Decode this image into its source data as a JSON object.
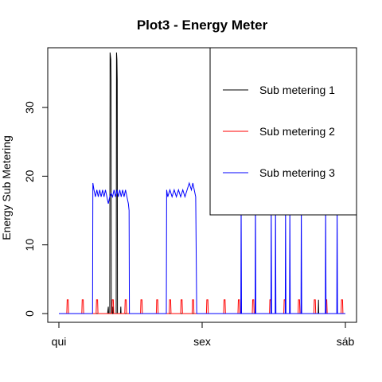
{
  "chart_data": {
    "type": "line",
    "title": "Plot3 - Energy Meter",
    "xlabel": "",
    "ylabel": "Energy Sub Metering",
    "x_ticks": [
      "qui",
      "sex",
      "sáb"
    ],
    "xlim": [
      0,
      2
    ],
    "ylim": [
      0,
      38
    ],
    "y_ticks": [
      0,
      10,
      20,
      30
    ],
    "grid": false,
    "legend": {
      "position": "top-right"
    },
    "series": [
      {
        "name": "Sub metering 1",
        "color": "#000000",
        "points": [
          [
            0.0,
            0
          ],
          [
            0.34,
            0
          ],
          [
            0.345,
            1
          ],
          [
            0.347,
            0
          ],
          [
            0.355,
            0
          ],
          [
            0.357,
            38
          ],
          [
            0.362,
            37
          ],
          [
            0.364,
            34
          ],
          [
            0.366,
            0
          ],
          [
            0.375,
            0
          ],
          [
            0.377,
            1
          ],
          [
            0.379,
            0
          ],
          [
            0.4,
            0
          ],
          [
            0.402,
            38
          ],
          [
            0.405,
            37
          ],
          [
            0.407,
            34
          ],
          [
            0.409,
            0
          ],
          [
            0.43,
            0
          ],
          [
            0.432,
            1
          ],
          [
            0.434,
            0
          ],
          [
            1.81,
            0
          ],
          [
            1.812,
            2
          ],
          [
            1.814,
            0
          ],
          [
            2.0,
            0
          ]
        ]
      },
      {
        "name": "Sub metering 2",
        "color": "#ff0000",
        "points": [
          [
            0.0,
            0
          ],
          [
            0.055,
            0
          ],
          [
            0.058,
            2
          ],
          [
            0.065,
            2
          ],
          [
            0.068,
            0
          ],
          [
            0.16,
            0
          ],
          [
            0.163,
            2
          ],
          [
            0.17,
            2
          ],
          [
            0.173,
            0
          ],
          [
            0.26,
            0
          ],
          [
            0.263,
            2
          ],
          [
            0.27,
            2
          ],
          [
            0.273,
            0
          ],
          [
            0.37,
            0
          ],
          [
            0.373,
            2
          ],
          [
            0.38,
            2
          ],
          [
            0.383,
            0
          ],
          [
            0.46,
            0
          ],
          [
            0.463,
            2
          ],
          [
            0.47,
            2
          ],
          [
            0.473,
            0
          ],
          [
            0.57,
            0
          ],
          [
            0.573,
            2
          ],
          [
            0.58,
            2
          ],
          [
            0.583,
            0
          ],
          [
            0.68,
            0
          ],
          [
            0.683,
            2
          ],
          [
            0.69,
            2
          ],
          [
            0.693,
            0
          ],
          [
            0.77,
            0
          ],
          [
            0.773,
            2
          ],
          [
            0.78,
            2
          ],
          [
            0.783,
            0
          ],
          [
            0.85,
            0
          ],
          [
            0.853,
            2
          ],
          [
            0.86,
            2
          ],
          [
            0.863,
            0
          ],
          [
            0.93,
            0
          ],
          [
            0.933,
            2
          ],
          [
            0.94,
            2
          ],
          [
            0.943,
            0
          ],
          [
            1.03,
            0
          ],
          [
            1.033,
            2
          ],
          [
            1.04,
            2
          ],
          [
            1.043,
            0
          ],
          [
            1.15,
            0
          ],
          [
            1.153,
            2
          ],
          [
            1.16,
            2
          ],
          [
            1.163,
            0
          ],
          [
            1.25,
            0
          ],
          [
            1.253,
            2
          ],
          [
            1.26,
            2
          ],
          [
            1.263,
            0
          ],
          [
            1.35,
            0
          ],
          [
            1.353,
            2
          ],
          [
            1.36,
            2
          ],
          [
            1.363,
            0
          ],
          [
            1.47,
            0
          ],
          [
            1.473,
            2
          ],
          [
            1.48,
            2
          ],
          [
            1.483,
            0
          ],
          [
            1.57,
            0
          ],
          [
            1.573,
            2
          ],
          [
            1.58,
            2
          ],
          [
            1.583,
            0
          ],
          [
            1.67,
            0
          ],
          [
            1.673,
            2
          ],
          [
            1.68,
            2
          ],
          [
            1.683,
            0
          ],
          [
            1.78,
            0
          ],
          [
            1.783,
            2
          ],
          [
            1.79,
            2
          ],
          [
            1.793,
            0
          ],
          [
            1.86,
            0
          ],
          [
            1.863,
            2
          ],
          [
            1.87,
            2
          ],
          [
            1.873,
            0
          ],
          [
            1.97,
            0
          ],
          [
            1.973,
            2
          ],
          [
            1.98,
            2
          ],
          [
            1.983,
            0
          ],
          [
            2.0,
            0
          ]
        ]
      },
      {
        "name": "Sub metering 3",
        "color": "#0000ff",
        "points": [
          [
            0.0,
            0
          ],
          [
            0.235,
            0
          ],
          [
            0.237,
            19
          ],
          [
            0.245,
            18
          ],
          [
            0.255,
            17
          ],
          [
            0.265,
            18
          ],
          [
            0.275,
            17
          ],
          [
            0.285,
            18
          ],
          [
            0.295,
            17
          ],
          [
            0.305,
            18
          ],
          [
            0.315,
            17
          ],
          [
            0.325,
            18
          ],
          [
            0.335,
            17
          ],
          [
            0.345,
            16
          ],
          [
            0.355,
            17
          ],
          [
            0.365,
            17.5
          ],
          [
            0.375,
            17
          ],
          [
            0.385,
            18
          ],
          [
            0.395,
            17
          ],
          [
            0.405,
            18
          ],
          [
            0.415,
            17
          ],
          [
            0.425,
            18
          ],
          [
            0.435,
            17
          ],
          [
            0.445,
            18
          ],
          [
            0.455,
            17
          ],
          [
            0.465,
            18
          ],
          [
            0.475,
            17
          ],
          [
            0.485,
            16
          ],
          [
            0.49,
            15
          ],
          [
            0.492,
            0
          ],
          [
            0.75,
            0
          ],
          [
            0.752,
            18
          ],
          [
            0.76,
            17
          ],
          [
            0.775,
            18
          ],
          [
            0.79,
            17
          ],
          [
            0.805,
            18
          ],
          [
            0.82,
            17
          ],
          [
            0.835,
            18
          ],
          [
            0.85,
            17
          ],
          [
            0.865,
            18
          ],
          [
            0.88,
            17
          ],
          [
            0.895,
            18
          ],
          [
            0.91,
            19
          ],
          [
            0.925,
            18
          ],
          [
            0.935,
            19
          ],
          [
            0.945,
            18
          ],
          [
            0.955,
            17
          ],
          [
            0.962,
            0
          ],
          [
            1.27,
            0
          ],
          [
            1.272,
            16
          ],
          [
            1.275,
            0
          ],
          [
            1.37,
            0
          ],
          [
            1.372,
            17
          ],
          [
            1.375,
            0
          ],
          [
            1.48,
            0
          ],
          [
            1.482,
            16
          ],
          [
            1.485,
            0
          ],
          [
            1.51,
            0
          ],
          [
            1.512,
            16
          ],
          [
            1.515,
            0
          ],
          [
            1.58,
            0
          ],
          [
            1.582,
            16
          ],
          [
            1.585,
            0
          ],
          [
            1.61,
            0
          ],
          [
            1.612,
            16
          ],
          [
            1.615,
            0
          ],
          [
            1.69,
            0
          ],
          [
            1.692,
            16
          ],
          [
            1.695,
            0
          ],
          [
            1.86,
            0
          ],
          [
            1.862,
            16
          ],
          [
            1.865,
            0
          ],
          [
            1.94,
            0
          ],
          [
            1.942,
            16
          ],
          [
            1.945,
            0
          ],
          [
            2.0,
            0
          ]
        ]
      }
    ]
  }
}
